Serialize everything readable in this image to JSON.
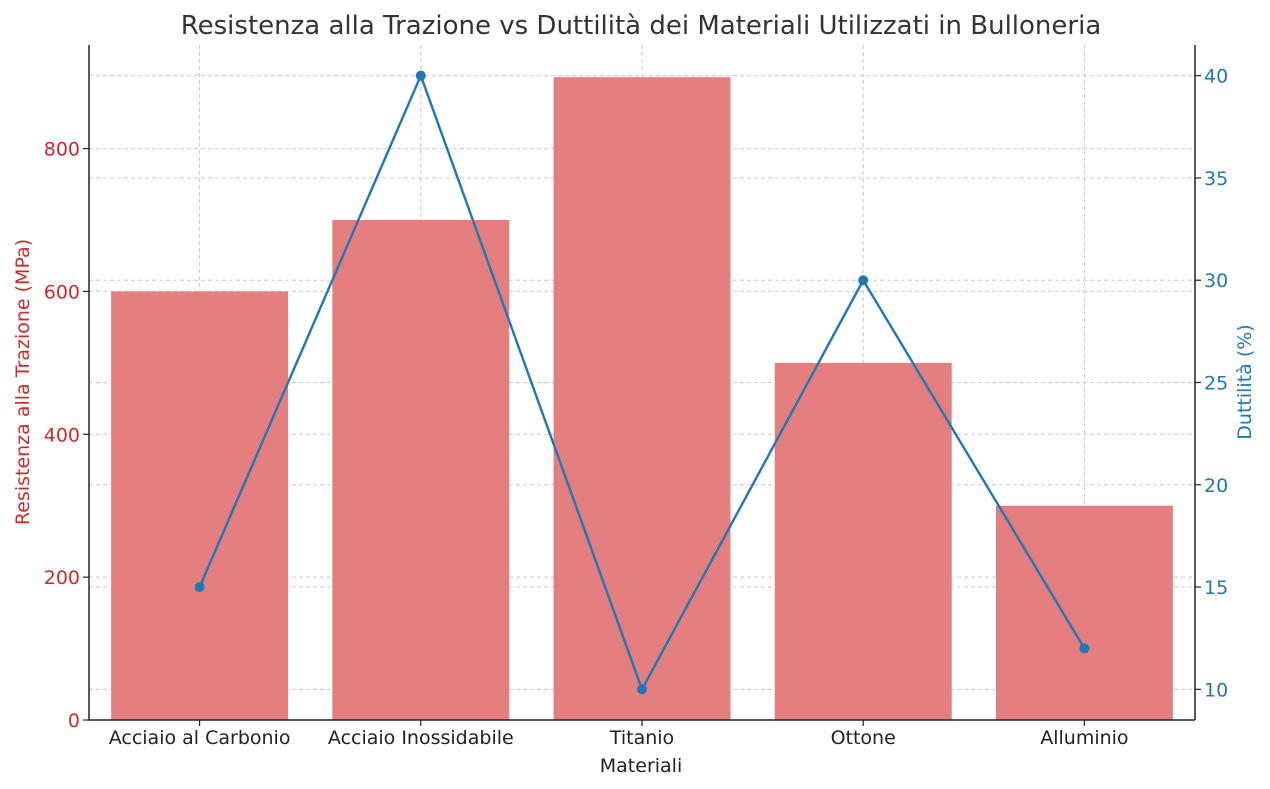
{
  "chart_data": {
    "type": "bar",
    "title": "Resistenza alla Trazione vs Duttilità dei Materiali Utilizzati in Bulloneria",
    "xlabel": "Materiali",
    "ylabel_left": "Resistenza alla Trazione (MPa)",
    "ylabel_right": "Duttilità (%)",
    "categories": [
      "Acciaio al Carbonio",
      "Acciaio Inossidabile",
      "Titanio",
      "Ottone",
      "Alluminio"
    ],
    "series": [
      {
        "name": "Resistenza alla Trazione (MPa)",
        "type": "bar",
        "axis": "left",
        "values": [
          600,
          700,
          900,
          500,
          300
        ],
        "color": "#e57f7f"
      },
      {
        "name": "Duttilità (%)",
        "type": "line",
        "axis": "right",
        "values": [
          15,
          40,
          10,
          30,
          12
        ],
        "color": "#1f77b4"
      }
    ],
    "ylim_left": [
      0,
      945
    ],
    "ylim_right": [
      8.5,
      41.5
    ],
    "yticks_left": [
      0,
      200,
      400,
      600,
      800
    ],
    "yticks_right": [
      10,
      15,
      20,
      25,
      30,
      35,
      40
    ],
    "grid": true,
    "colors": {
      "left_axis": "#d62728",
      "right_axis": "#1f77b4",
      "bars": "#e57f7f",
      "line": "#1f77b4"
    }
  }
}
